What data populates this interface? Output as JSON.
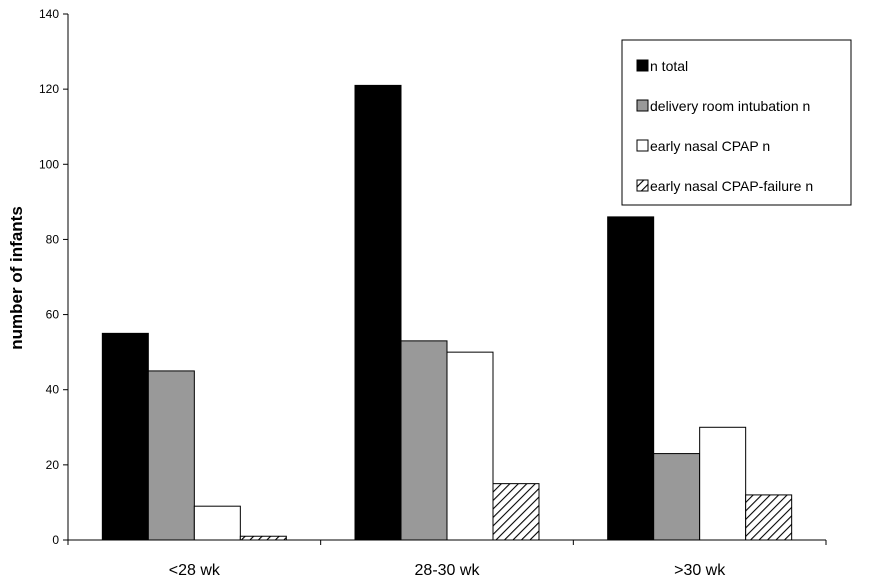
{
  "chart_data": {
    "type": "bar",
    "title": "",
    "xlabel": "",
    "ylabel": "number of infants",
    "ylim": [
      0,
      140
    ],
    "yticks": [
      0,
      20,
      40,
      60,
      80,
      100,
      120,
      140
    ],
    "grid": false,
    "legend_position": "top-right",
    "categories": [
      "<28 wk",
      "28-30 wk",
      ">30 wk"
    ],
    "series": [
      {
        "name": "n total",
        "values": [
          55,
          121,
          86
        ],
        "fill": "#000000",
        "pattern": "solid"
      },
      {
        "name": "delivery room intubation  n",
        "values": [
          45,
          53,
          23
        ],
        "fill": "#999999",
        "pattern": "solid"
      },
      {
        "name": "early nasal CPAP n",
        "values": [
          9,
          50,
          30
        ],
        "fill": "#ffffff",
        "pattern": "solid"
      },
      {
        "name": "early nasal CPAP-failure n",
        "values": [
          1,
          15,
          12
        ],
        "fill": "#ffffff",
        "pattern": "hatch"
      }
    ]
  }
}
